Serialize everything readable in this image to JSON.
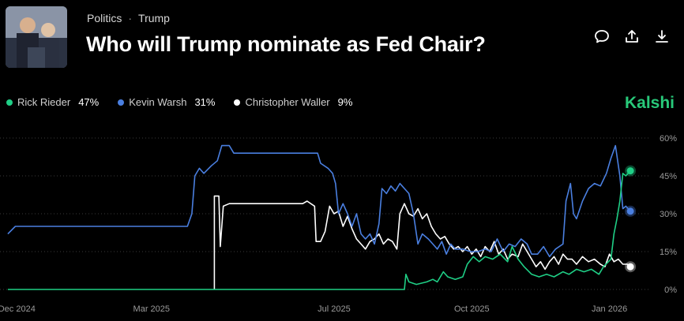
{
  "header": {
    "category": "Politics",
    "subcategory": "Trump",
    "title": "Who will Trump nominate as Fed Chair?"
  },
  "actions": [
    "comment-icon",
    "share-icon",
    "download-icon"
  ],
  "brand": "Kalshi",
  "chart_data": {
    "type": "line",
    "series": [
      {
        "name": "Rick Rieder",
        "label_pct": "47%",
        "color": "#1fcf86",
        "points": [
          [
            "2024-11-25",
            0
          ],
          [
            "2025-02-15",
            0
          ],
          [
            "2025-05-01",
            0
          ],
          [
            "2025-07-01",
            0
          ],
          [
            "2025-08-17",
            0
          ],
          [
            "2025-08-18",
            6
          ],
          [
            "2025-08-20",
            3
          ],
          [
            "2025-08-25",
            2
          ],
          [
            "2025-09-01",
            3
          ],
          [
            "2025-09-05",
            4
          ],
          [
            "2025-09-08",
            3
          ],
          [
            "2025-09-12",
            7
          ],
          [
            "2025-09-15",
            5
          ],
          [
            "2025-09-20",
            4
          ],
          [
            "2025-09-25",
            5
          ],
          [
            "2025-09-28",
            10
          ],
          [
            "2025-10-02",
            13
          ],
          [
            "2025-10-06",
            11
          ],
          [
            "2025-10-10",
            13
          ],
          [
            "2025-10-15",
            12
          ],
          [
            "2025-10-20",
            14
          ],
          [
            "2025-10-25",
            11
          ],
          [
            "2025-10-28",
            17
          ],
          [
            "2025-11-01",
            12
          ],
          [
            "2025-11-05",
            9
          ],
          [
            "2025-11-10",
            6
          ],
          [
            "2025-11-15",
            5
          ],
          [
            "2025-11-20",
            6
          ],
          [
            "2025-11-25",
            5
          ],
          [
            "2025-12-01",
            7
          ],
          [
            "2025-12-05",
            6
          ],
          [
            "2025-12-10",
            8
          ],
          [
            "2025-12-15",
            7
          ],
          [
            "2025-12-20",
            8
          ],
          [
            "2025-12-25",
            6
          ],
          [
            "2025-12-28",
            9
          ],
          [
            "2026-01-02",
            12
          ],
          [
            "2026-01-04",
            22
          ],
          [
            "2026-01-06",
            28
          ],
          [
            "2026-01-08",
            35
          ],
          [
            "2026-01-10",
            46
          ],
          [
            "2026-01-12",
            45
          ],
          [
            "2026-01-15",
            47
          ]
        ]
      },
      {
        "name": "Kevin Warsh",
        "label_pct": "31%",
        "color": "#4a7fe0",
        "points": [
          [
            "2024-11-25",
            22
          ],
          [
            "2024-11-30",
            25
          ],
          [
            "2025-01-15",
            25
          ],
          [
            "2025-02-15",
            25
          ],
          [
            "2025-03-05",
            25
          ],
          [
            "2025-03-25",
            25
          ],
          [
            "2025-03-28",
            30
          ],
          [
            "2025-03-30",
            45
          ],
          [
            "2025-04-02",
            48
          ],
          [
            "2025-04-05",
            46
          ],
          [
            "2025-04-10",
            49
          ],
          [
            "2025-04-14",
            51
          ],
          [
            "2025-04-17",
            57
          ],
          [
            "2025-04-22",
            57
          ],
          [
            "2025-04-25",
            54
          ],
          [
            "2025-05-20",
            54
          ],
          [
            "2025-06-20",
            54
          ],
          [
            "2025-06-22",
            50
          ],
          [
            "2025-06-27",
            48
          ],
          [
            "2025-06-30",
            46
          ],
          [
            "2025-07-02",
            42
          ],
          [
            "2025-07-04",
            30
          ],
          [
            "2025-07-07",
            34
          ],
          [
            "2025-07-10",
            30
          ],
          [
            "2025-07-13",
            25
          ],
          [
            "2025-07-16",
            30
          ],
          [
            "2025-07-19",
            22
          ],
          [
            "2025-07-22",
            20
          ],
          [
            "2025-07-25",
            22
          ],
          [
            "2025-07-28",
            18
          ],
          [
            "2025-07-31",
            26
          ],
          [
            "2025-08-02",
            40
          ],
          [
            "2025-08-05",
            38
          ],
          [
            "2025-08-08",
            41
          ],
          [
            "2025-08-11",
            39
          ],
          [
            "2025-08-14",
            42
          ],
          [
            "2025-08-17",
            40
          ],
          [
            "2025-08-20",
            38
          ],
          [
            "2025-08-23",
            30
          ],
          [
            "2025-08-26",
            18
          ],
          [
            "2025-08-29",
            22
          ],
          [
            "2025-09-02",
            20
          ],
          [
            "2025-09-05",
            18
          ],
          [
            "2025-09-08",
            16
          ],
          [
            "2025-09-11",
            19
          ],
          [
            "2025-09-14",
            14
          ],
          [
            "2025-09-17",
            18
          ],
          [
            "2025-09-20",
            16
          ],
          [
            "2025-09-25",
            16
          ],
          [
            "2025-09-30",
            15
          ],
          [
            "2025-10-05",
            15
          ],
          [
            "2025-10-10",
            16
          ],
          [
            "2025-10-14",
            15
          ],
          [
            "2025-10-18",
            20
          ],
          [
            "2025-10-22",
            15
          ],
          [
            "2025-10-26",
            18
          ],
          [
            "2025-10-30",
            17
          ],
          [
            "2025-11-03",
            20
          ],
          [
            "2025-11-07",
            18
          ],
          [
            "2025-11-10",
            14
          ],
          [
            "2025-11-14",
            14
          ],
          [
            "2025-11-18",
            17
          ],
          [
            "2025-11-22",
            13
          ],
          [
            "2025-11-26",
            16
          ],
          [
            "2025-12-01",
            18
          ],
          [
            "2025-12-03",
            35
          ],
          [
            "2025-12-06",
            42
          ],
          [
            "2025-12-08",
            30
          ],
          [
            "2025-12-10",
            28
          ],
          [
            "2025-12-14",
            35
          ],
          [
            "2025-12-18",
            40
          ],
          [
            "2025-12-22",
            42
          ],
          [
            "2025-12-26",
            41
          ],
          [
            "2025-12-30",
            46
          ],
          [
            "2026-01-02",
            52
          ],
          [
            "2026-01-05",
            57
          ],
          [
            "2026-01-08",
            45
          ],
          [
            "2026-01-10",
            32
          ],
          [
            "2026-01-12",
            33
          ],
          [
            "2026-01-15",
            31
          ]
        ]
      },
      {
        "name": "Christopher Waller",
        "label_pct": "9%",
        "color": "#ffffff",
        "points": [
          [
            "2025-04-12",
            0
          ],
          [
            "2025-04-12",
            37
          ],
          [
            "2025-04-15",
            37
          ],
          [
            "2025-04-16",
            17
          ],
          [
            "2025-04-18",
            33
          ],
          [
            "2025-04-22",
            34
          ],
          [
            "2025-05-10",
            34
          ],
          [
            "2025-06-10",
            34
          ],
          [
            "2025-06-13",
            35
          ],
          [
            "2025-06-18",
            33
          ],
          [
            "2025-06-19",
            19
          ],
          [
            "2025-06-22",
            19
          ],
          [
            "2025-06-25",
            23
          ],
          [
            "2025-06-28",
            33
          ],
          [
            "2025-07-01",
            30
          ],
          [
            "2025-07-04",
            31
          ],
          [
            "2025-07-07",
            25
          ],
          [
            "2025-07-10",
            29
          ],
          [
            "2025-07-13",
            24
          ],
          [
            "2025-07-16",
            20
          ],
          [
            "2025-07-19",
            18
          ],
          [
            "2025-07-22",
            16
          ],
          [
            "2025-07-25",
            19
          ],
          [
            "2025-07-28",
            20
          ],
          [
            "2025-07-31",
            22
          ],
          [
            "2025-08-03",
            18
          ],
          [
            "2025-08-06",
            20
          ],
          [
            "2025-08-09",
            19
          ],
          [
            "2025-08-12",
            16
          ],
          [
            "2025-08-14",
            30
          ],
          [
            "2025-08-17",
            34
          ],
          [
            "2025-08-20",
            30
          ],
          [
            "2025-08-23",
            29
          ],
          [
            "2025-08-26",
            32
          ],
          [
            "2025-08-29",
            28
          ],
          [
            "2025-09-01",
            30
          ],
          [
            "2025-09-04",
            25
          ],
          [
            "2025-09-07",
            22
          ],
          [
            "2025-09-10",
            20
          ],
          [
            "2025-09-13",
            21
          ],
          [
            "2025-09-16",
            18
          ],
          [
            "2025-09-19",
            16
          ],
          [
            "2025-09-22",
            17
          ],
          [
            "2025-09-25",
            15
          ],
          [
            "2025-09-28",
            17
          ],
          [
            "2025-10-01",
            14
          ],
          [
            "2025-10-04",
            16
          ],
          [
            "2025-10-07",
            13
          ],
          [
            "2025-10-10",
            17
          ],
          [
            "2025-10-13",
            15
          ],
          [
            "2025-10-16",
            19
          ],
          [
            "2025-10-19",
            14
          ],
          [
            "2025-10-22",
            16
          ],
          [
            "2025-10-25",
            12
          ],
          [
            "2025-10-28",
            14
          ],
          [
            "2025-11-01",
            13
          ],
          [
            "2025-11-04",
            18
          ],
          [
            "2025-11-07",
            15
          ],
          [
            "2025-11-10",
            12
          ],
          [
            "2025-11-13",
            9
          ],
          [
            "2025-11-16",
            11
          ],
          [
            "2025-11-19",
            8
          ],
          [
            "2025-11-22",
            11
          ],
          [
            "2025-11-25",
            13
          ],
          [
            "2025-11-28",
            10
          ],
          [
            "2025-12-01",
            14
          ],
          [
            "2025-12-04",
            12
          ],
          [
            "2025-12-07",
            12
          ],
          [
            "2025-12-10",
            10
          ],
          [
            "2025-12-14",
            13
          ],
          [
            "2025-12-18",
            11
          ],
          [
            "2025-12-22",
            12
          ],
          [
            "2025-12-26",
            10
          ],
          [
            "2025-12-29",
            9
          ],
          [
            "2026-01-01",
            14
          ],
          [
            "2026-01-04",
            11
          ],
          [
            "2026-01-07",
            12
          ],
          [
            "2026-01-10",
            10
          ],
          [
            "2026-01-13",
            10
          ],
          [
            "2026-01-15",
            9
          ]
        ]
      }
    ],
    "x_ticks": [
      {
        "label": "Dec 2024",
        "date": "2024-12-01"
      },
      {
        "label": "Mar 2025",
        "date": "2025-03-01"
      },
      {
        "label": "Jul 2025",
        "date": "2025-07-01"
      },
      {
        "label": "Oct 2025",
        "date": "2025-10-01"
      },
      {
        "label": "Jan 2026",
        "date": "2026-01-01"
      }
    ],
    "y_ticks": [
      {
        "label": "60%",
        "value": 60
      },
      {
        "label": "45%",
        "value": 45
      },
      {
        "label": "30%",
        "value": 30
      },
      {
        "label": "15%",
        "value": 15
      },
      {
        "label": "0%",
        "value": 0
      }
    ],
    "xlim": [
      "2024-11-24",
      "2026-01-16"
    ],
    "ylim": [
      0,
      60
    ],
    "grid": true,
    "gridline_style": "dotted",
    "axis_side": "right",
    "legend_placement": "top-left"
  }
}
